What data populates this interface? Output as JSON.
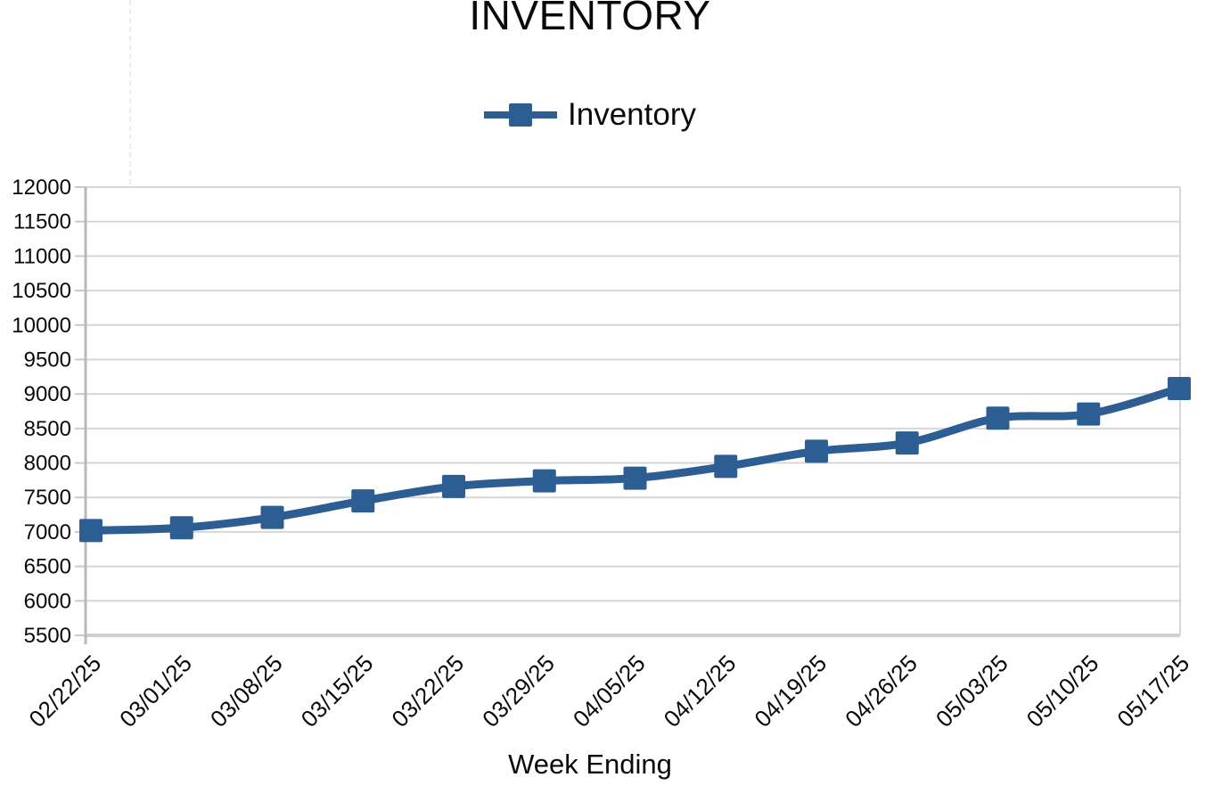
{
  "accent_color": "#2d5e93",
  "chart_data": {
    "type": "line",
    "title": "INVENTORY",
    "xlabel": "Week Ending",
    "ylabel": "",
    "legend_position": "top",
    "grid": true,
    "categories": [
      "02/22/25",
      "03/01/25",
      "03/08/25",
      "03/15/25",
      "03/22/25",
      "03/29/25",
      "04/05/25",
      "04/12/25",
      "04/19/25",
      "04/26/25",
      "05/03/25",
      "05/10/25",
      "05/17/25"
    ],
    "series": [
      {
        "name": "Inventory",
        "color": "#2d5e93",
        "marker": "square",
        "values": [
          7020,
          7060,
          7210,
          7450,
          7660,
          7740,
          7780,
          7950,
          8170,
          8290,
          8650,
          8710,
          9080
        ]
      }
    ],
    "ylim": [
      5500,
      12000
    ],
    "ytick_step": 500,
    "ytick_labels": [
      "5500",
      "6000",
      "6500",
      "7000",
      "7500",
      "8000",
      "8500",
      "9000",
      "9500",
      "10000",
      "10500",
      "11000",
      "11500",
      "12000"
    ]
  }
}
